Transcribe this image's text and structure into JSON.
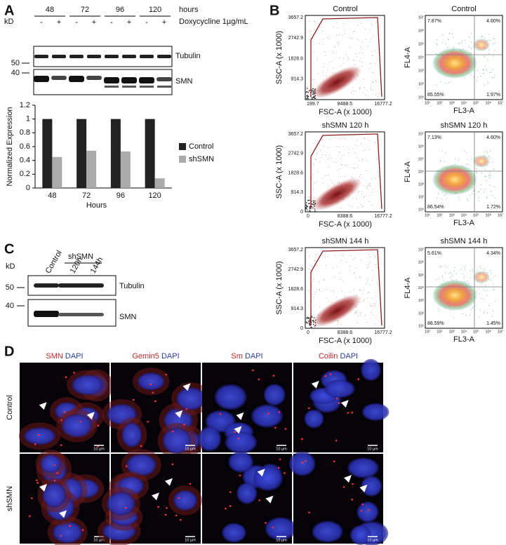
{
  "panel_a": {
    "label": "A",
    "hours_label": "hours",
    "timepoints": [
      "48",
      "72",
      "96",
      "120"
    ],
    "treatment": "Doxycycline 1µg/mL",
    "kd_label": "kD",
    "signs": [
      "-",
      "+",
      "-",
      "+",
      "-",
      "+",
      "-",
      "+"
    ],
    "markers": [
      "50",
      "40"
    ],
    "bands": [
      "Tubulin",
      "SMN"
    ]
  },
  "chart_data": {
    "type": "bar",
    "categories": [
      "48",
      "72",
      "96",
      "120"
    ],
    "series": [
      {
        "name": "Control",
        "color": "#222222",
        "values": [
          1,
          1,
          1,
          1
        ]
      },
      {
        "name": "shSMN",
        "color": "#aaaaaa",
        "values": [
          0.45,
          0.54,
          0.53,
          0.14
        ]
      }
    ],
    "ylim": [
      0,
      1.2
    ],
    "yticks": [
      0,
      0.2,
      0.4,
      0.6,
      0.8,
      1,
      1.2
    ],
    "ylabel": "Normalized Expression",
    "xlabel": "Hours",
    "legend": "right"
  },
  "panel_b": {
    "label": "B",
    "scatter": [
      {
        "title": "Control",
        "ylabel": "SSC-A (x 1000)",
        "xlabel": "FSC-A (x 1000)",
        "yticks": [
          "3657.2",
          "2742.9",
          "1828.6",
          "914.3"
        ],
        "xticks": [
          "199.7",
          "8488.5",
          "16777.2"
        ]
      },
      {
        "title": "shSMN 120 h",
        "ylabel": "SSC-A (x 1000)",
        "xlabel": "FSC-A (x 1000)",
        "yticks": [
          "3657.2",
          "2742.9",
          "1828.6",
          "914.3",
          "0"
        ],
        "xticks": [
          "0",
          "8388.6",
          "16777.2"
        ]
      },
      {
        "title": "shSMN 144 h",
        "ylabel": "SSC-A (x 1000)",
        "xlabel": "FSC-A (x 1000)",
        "yticks": [
          "3657.2",
          "2742.9",
          "1828.6",
          "914.3",
          "0"
        ],
        "xticks": [
          "0",
          "8388.6",
          "16777.2"
        ]
      }
    ],
    "fluor": [
      {
        "title": "Control",
        "ylabel": "FL4-A",
        "xlabel": "FL3-A",
        "quadrants": [
          "7.87%",
          "4.60%",
          "85.55%",
          "1.97%"
        ]
      },
      {
        "title": "shSMN 120 h",
        "ylabel": "FL4-A",
        "xlabel": "FL3-A",
        "quadrants": [
          "7.13%",
          "4.60%",
          "86.54%",
          "1.72%"
        ]
      },
      {
        "title": "shSMN 144 h",
        "ylabel": "FL4-A",
        "xlabel": "FL3-A",
        "quadrants": [
          "5.61%",
          "4.34%",
          "88.59%",
          "1.45%"
        ]
      }
    ],
    "log_ticks": [
      "10¹",
      "10²",
      "10³",
      "10⁴",
      "10⁵",
      "10⁶",
      "10⁷"
    ]
  },
  "panel_c": {
    "label": "C",
    "group": "shSMN",
    "lanes": [
      "Control",
      "120h",
      "144h"
    ],
    "kd_label": "kD",
    "markers": [
      "50",
      "40"
    ],
    "bands": [
      "Tubulin",
      "SMN"
    ]
  },
  "panel_d": {
    "label": "D",
    "columns": [
      {
        "stain": "SMN",
        "counter": "DAPI"
      },
      {
        "stain": "Gemin5",
        "counter": "DAPI"
      },
      {
        "stain": "Sm",
        "counter": "DAPI"
      },
      {
        "stain": "Coilin",
        "counter": "DAPI"
      }
    ],
    "rows": [
      "Control",
      "shSMN"
    ],
    "scale_bar": "10 µm"
  }
}
